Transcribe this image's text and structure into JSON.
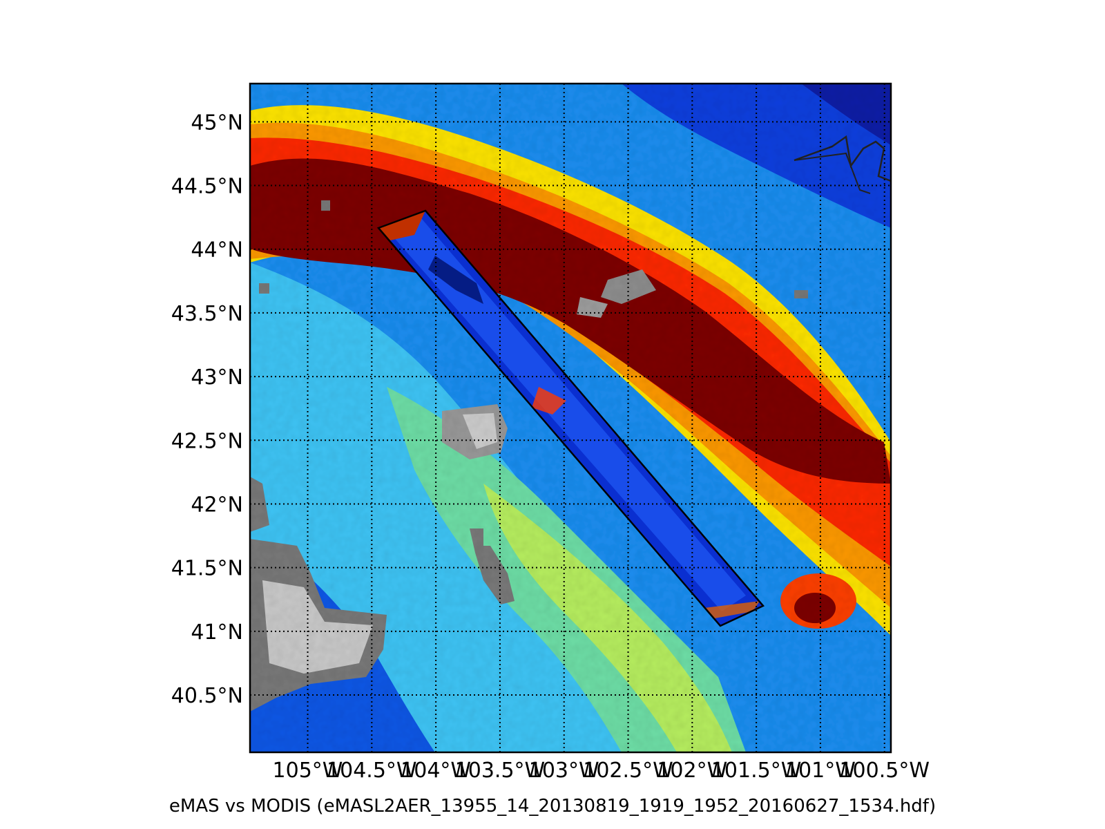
{
  "map": {
    "lat_ticks": [
      "45°N",
      "44.5°N",
      "44°N",
      "43.5°N",
      "43°N",
      "42.5°N",
      "42°N",
      "41.5°N",
      "41°N",
      "40.5°N"
    ],
    "lat_values": [
      45,
      44.5,
      44,
      43.5,
      43,
      42.5,
      42,
      41.5,
      41,
      40.5
    ],
    "lon_ticks": [
      "105°W",
      "104.5°W",
      "104°W",
      "103.5°W",
      "103°W",
      "102.5°W",
      "102°W",
      "101.5°W",
      "101°W",
      "100.5°W"
    ],
    "lon_values": [
      -105,
      -104.5,
      -104,
      -103.5,
      -103,
      -102.5,
      -102,
      -101.5,
      -101,
      -100.5
    ],
    "lat_range": [
      40.05,
      45.3
    ],
    "lon_range": [
      -105.45,
      -100.45
    ],
    "gridlines": "dotted",
    "colormap": [
      "#00007f",
      "#0000ff",
      "#0080ff",
      "#00e5ff",
      "#80ff80",
      "#ffff00",
      "#ff8000",
      "#ff1a00",
      "#7f0000"
    ],
    "no_data_color": "#808080",
    "swath_corners": [
      [
        -104.55,
        44.17
      ],
      [
        -104.2,
        44.3
      ],
      [
        -101.46,
        41.22
      ],
      [
        -101.82,
        41.07
      ]
    ]
  },
  "caption": "eMAS vs MODIS (eMASL2AER_13955_14_20130819_1919_1952_20160627_1534.hdf)"
}
